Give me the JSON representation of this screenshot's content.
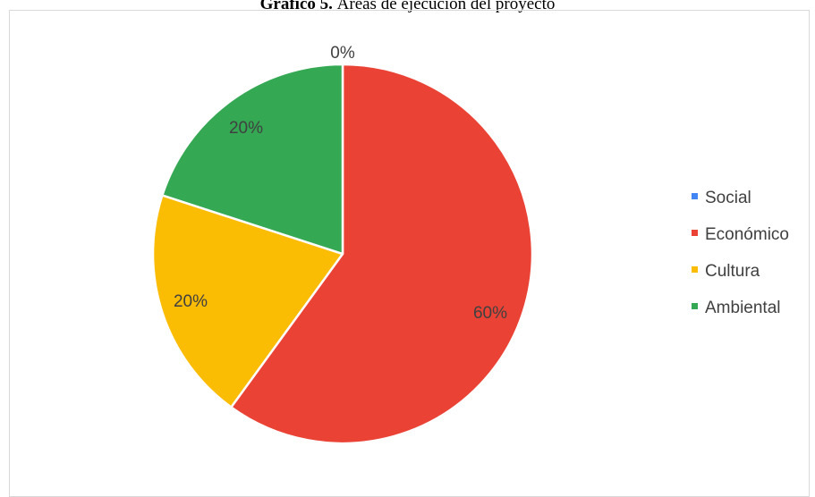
{
  "chart_data": {
    "type": "pie",
    "title_bold": "Gráfico 5.",
    "title_rest": " Áreas de ejecución del proyecto",
    "categories": [
      "Social",
      "Económico",
      "Cultura",
      "Ambiental"
    ],
    "values": [
      0,
      60,
      20,
      20
    ],
    "labels": [
      "0%",
      "60%",
      "20%",
      "20%"
    ],
    "colors": [
      "#4285f4",
      "#ea4335",
      "#fbbc04",
      "#34a853"
    ],
    "legend": "right",
    "start_angle": "top",
    "direction": "clockwise"
  }
}
